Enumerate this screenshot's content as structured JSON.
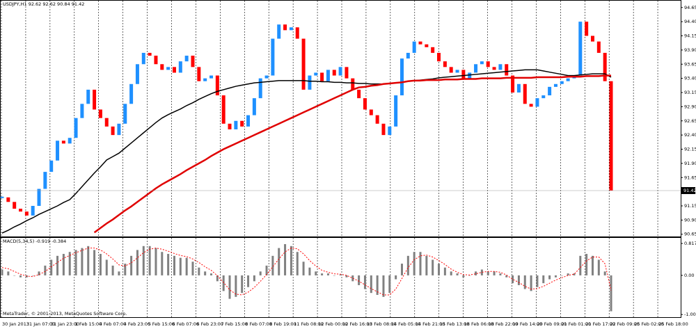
{
  "chart_data": [
    {
      "type": "candlestick",
      "title": "USDJPY,H1  92.62 92.62 90.84 91.42",
      "up_color": "#1e90ff",
      "down_color": "#ff0000",
      "ylim": [
        90.61,
        94.77
      ],
      "yticks": [
        94.65,
        {
          "value": 94.4,
          "label": "94.40"
        },
        94.15,
        {
          "value": 93.9,
          "label": "93.90"
        },
        93.65,
        {
          "value": 93.4,
          "label": "93.40"
        },
        93.15,
        {
          "value": 92.9,
          "label": "92.90"
        },
        92.65,
        {
          "value": 92.4,
          "label": "92.40"
        },
        92.15,
        {
          "value": 91.9,
          "label": "91.90"
        },
        91.65,
        {
          "value": 91.4,
          "label": "91.40"
        },
        91.15,
        {
          "value": 90.9,
          "label": "90.90"
        },
        90.65
      ],
      "x_labels": [
        "30 Jan 2013",
        "31 Jan 07:00",
        "31 Jan 23:00",
        "1 Feb 15:00",
        "4 Feb 07:00",
        "4 Feb 23:00",
        "5 Feb 15:00",
        "6 Feb 07:00",
        "6 Feb 23:00",
        "7 Feb 15:00",
        "8 Feb 07:00",
        "8 Feb 19:00",
        "11 Feb 08:00",
        "12 Feb 00:00",
        "12 Feb 16:00",
        "13 Feb 08:00",
        "14 Feb 05:00",
        "14 Feb 21:00",
        "15 Feb 13:00",
        "18 Feb 06:00",
        "18 Feb 22:00",
        "19 Feb 14:00",
        "20 Feb 09:00",
        "21 Feb 01:00",
        "21 Feb 17:00",
        "22 Feb 09:00",
        "25 Feb 02:00",
        "25 Feb 18:00"
      ],
      "values": [
        91.3,
        91.22,
        91.1,
        91.05,
        90.98,
        91.15,
        91.45,
        91.75,
        91.95,
        92.3,
        92.25,
        92.35,
        92.7,
        92.95,
        93.2,
        92.85,
        92.7,
        92.55,
        92.4,
        92.6,
        92.95,
        93.3,
        93.65,
        93.85,
        93.8,
        93.65,
        93.55,
        93.6,
        93.5,
        93.7,
        93.8,
        93.6,
        93.35,
        93.4,
        93.45,
        93.1,
        92.6,
        92.5,
        92.65,
        92.55,
        92.75,
        93.05,
        93.4,
        93.45,
        94.1,
        94.35,
        94.25,
        94.3,
        94.1,
        93.2,
        93.45,
        93.5,
        93.35,
        93.55,
        93.45,
        93.6,
        93.4,
        93.2,
        93.05,
        92.85,
        92.75,
        92.6,
        92.4,
        92.55,
        93.1,
        93.75,
        93.85,
        94.05,
        94.0,
        93.95,
        93.85,
        93.7,
        93.6,
        93.5,
        93.55,
        93.4,
        93.5,
        93.65,
        93.7,
        93.6,
        93.55,
        93.65,
        93.45,
        93.15,
        93.3,
        92.95,
        92.9,
        93.05,
        93.1,
        93.25,
        93.3,
        93.35,
        93.4,
        93.45,
        94.4,
        94.15,
        94.05,
        93.85,
        93.35,
        91.42
      ],
      "ma_lines": [
        {
          "color": "#000000",
          "values": [
            90.67,
            90.72,
            90.78,
            90.83,
            90.89,
            90.94,
            91.0,
            91.05,
            91.1,
            91.15,
            91.21,
            91.26,
            91.37,
            91.49,
            91.61,
            91.73,
            91.84,
            91.96,
            92.02,
            92.08,
            92.17,
            92.26,
            92.35,
            92.44,
            92.53,
            92.62,
            92.7,
            92.76,
            92.81,
            92.86,
            92.92,
            92.97,
            93.03,
            93.08,
            93.13,
            93.17,
            93.2,
            93.23,
            93.26,
            93.28,
            93.3,
            93.32,
            93.33,
            93.34,
            93.35,
            93.36,
            93.36,
            93.36,
            93.36,
            93.36,
            93.35,
            93.35,
            93.34,
            93.34,
            93.33,
            93.33,
            93.32,
            93.32,
            93.31,
            93.31,
            93.3,
            93.3,
            93.3,
            93.31,
            93.32,
            93.33,
            93.35,
            93.36,
            93.37,
            93.38,
            93.39,
            93.41,
            93.42,
            93.43,
            93.44,
            93.45,
            93.46,
            93.47,
            93.48,
            93.49,
            93.5,
            93.51,
            93.52,
            93.53,
            93.54,
            93.55,
            93.55,
            93.55,
            93.53,
            93.51,
            93.49,
            93.47,
            93.45,
            93.45,
            93.46,
            93.47,
            93.48,
            93.48,
            93.48,
            93.42
          ]
        },
        {
          "color": "#e00000",
          "values": [
            null,
            null,
            null,
            null,
            null,
            null,
            null,
            null,
            null,
            null,
            null,
            null,
            null,
            null,
            null,
            90.68,
            90.76,
            90.84,
            90.91,
            90.99,
            91.07,
            91.14,
            91.22,
            91.3,
            91.38,
            91.46,
            91.53,
            91.59,
            91.65,
            91.71,
            91.78,
            91.84,
            91.9,
            91.96,
            92.03,
            92.09,
            92.15,
            92.2,
            92.25,
            92.3,
            92.35,
            92.4,
            92.45,
            92.5,
            92.55,
            92.6,
            92.65,
            92.7,
            92.75,
            92.8,
            92.85,
            92.9,
            92.95,
            93.0,
            93.05,
            93.1,
            93.15,
            93.2,
            93.24,
            93.25,
            93.27,
            93.28,
            93.3,
            93.31,
            93.32,
            93.33,
            93.35,
            93.36,
            93.36,
            93.37,
            93.37,
            93.37,
            93.38,
            93.38,
            93.38,
            93.39,
            93.39,
            93.39,
            93.4,
            93.4,
            93.4,
            93.4,
            93.41,
            93.41,
            93.41,
            93.41,
            93.41,
            93.42,
            93.42,
            93.42,
            93.42,
            93.42,
            93.43,
            93.43,
            93.43,
            93.44,
            93.44,
            93.44,
            93.45,
            93.45
          ]
        }
      ]
    },
    {
      "type": "bar",
      "title": "MACD(5,34,5) -0.919 -0.384",
      "color": "#808080",
      "ylim": [
        -1.07,
        0.96
      ],
      "yticks": [
        0.817,
        {
          "value": 0,
          "label": "0.00"
        },
        -1.002
      ],
      "values": [
        0.15,
        0.1,
        0.0,
        -0.05,
        -0.05,
        0.0,
        0.1,
        0.25,
        0.4,
        0.5,
        0.55,
        0.6,
        0.65,
        0.7,
        0.75,
        0.65,
        0.55,
        0.4,
        0.25,
        0.1,
        0.3,
        0.5,
        0.65,
        0.75,
        0.75,
        0.7,
        0.6,
        0.55,
        0.5,
        0.45,
        0.45,
        0.35,
        0.2,
        0.1,
        0.05,
        -0.15,
        -0.4,
        -0.6,
        -0.55,
        -0.45,
        -0.3,
        -0.15,
        0.1,
        0.25,
        0.5,
        0.7,
        0.8,
        0.75,
        0.6,
        0.35,
        0.2,
        0.1,
        0.05,
        0.05,
        0.0,
        0.02,
        -0.05,
        -0.15,
        -0.25,
        -0.35,
        -0.45,
        -0.5,
        -0.55,
        -0.45,
        -0.1,
        0.3,
        0.5,
        0.6,
        0.6,
        0.5,
        0.4,
        0.3,
        0.2,
        0.1,
        0.05,
        -0.05,
        0.0,
        0.1,
        0.15,
        0.1,
        0.1,
        0.05,
        -0.05,
        -0.2,
        -0.25,
        -0.35,
        -0.4,
        -0.3,
        -0.2,
        -0.1,
        -0.05,
        0.0,
        0.05,
        0.05,
        0.5,
        0.55,
        0.5,
        0.4,
        0.1,
        -0.919
      ],
      "signal": {
        "color": "#ff0000",
        "values": [
          0.2,
          0.17,
          0.1,
          0.03,
          -0.02,
          -0.03,
          0.02,
          0.1,
          0.22,
          0.33,
          0.44,
          0.51,
          0.58,
          0.64,
          0.7,
          0.7,
          0.65,
          0.55,
          0.42,
          0.27,
          0.24,
          0.32,
          0.45,
          0.58,
          0.67,
          0.7,
          0.67,
          0.62,
          0.56,
          0.51,
          0.48,
          0.42,
          0.33,
          0.22,
          0.13,
          -0.01,
          -0.18,
          -0.37,
          -0.48,
          -0.5,
          -0.43,
          -0.31,
          -0.15,
          0.02,
          0.22,
          0.42,
          0.6,
          0.7,
          0.68,
          0.55,
          0.38,
          0.24,
          0.13,
          0.08,
          0.04,
          0.03,
          0.0,
          -0.07,
          -0.15,
          -0.24,
          -0.34,
          -0.42,
          -0.5,
          -0.5,
          -0.35,
          -0.08,
          0.2,
          0.4,
          0.5,
          0.52,
          0.47,
          0.38,
          0.28,
          0.16,
          0.08,
          0.02,
          0.01,
          0.04,
          0.08,
          0.1,
          0.1,
          0.08,
          0.01,
          -0.1,
          -0.18,
          -0.28,
          -0.35,
          -0.34,
          -0.28,
          -0.2,
          -0.12,
          -0.06,
          0.0,
          0.03,
          0.2,
          0.37,
          0.47,
          0.47,
          0.3,
          -0.384
        ]
      }
    }
  ],
  "footer": "MetaTrader, © 2001-2013, MetaQuotes Software Corp."
}
